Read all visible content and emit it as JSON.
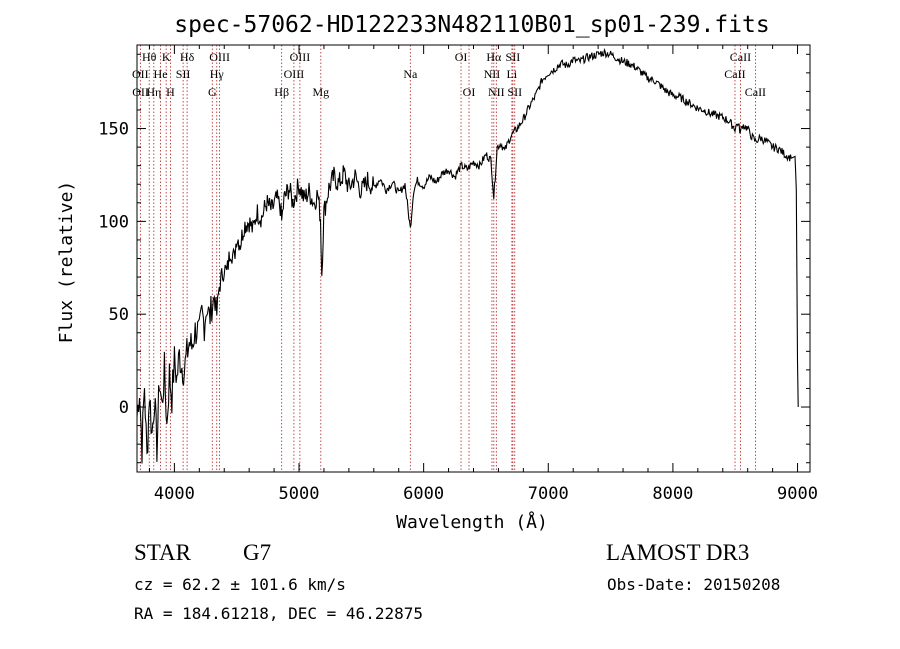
{
  "chart_data": {
    "type": "line",
    "title": "spec-57062-HD122233N482110B01_sp01-239.fits",
    "xlabel": "Wavelength (Å)",
    "ylabel": "Flux (relative)",
    "xlim": [
      3700,
      9100
    ],
    "ylim": [
      -35,
      195
    ],
    "x_ticks": [
      4000,
      5000,
      6000,
      7000,
      8000,
      9000
    ],
    "y_ticks": [
      0,
      50,
      100,
      150
    ],
    "series": [
      {
        "name": "spectrum",
        "points": [
          [
            3700,
            -5
          ],
          [
            3720,
            10
          ],
          [
            3740,
            -22
          ],
          [
            3760,
            12
          ],
          [
            3780,
            -28
          ],
          [
            3800,
            8
          ],
          [
            3820,
            -15
          ],
          [
            3840,
            5
          ],
          [
            3860,
            -22
          ],
          [
            3880,
            15
          ],
          [
            3900,
            0
          ],
          [
            3920,
            20
          ],
          [
            3940,
            -10
          ],
          [
            3960,
            18
          ],
          [
            3980,
            5
          ],
          [
            4000,
            25
          ],
          [
            4020,
            15
          ],
          [
            4040,
            28
          ],
          [
            4060,
            22
          ],
          [
            4080,
            20
          ],
          [
            4100,
            28
          ],
          [
            4120,
            35
          ],
          [
            4140,
            32
          ],
          [
            4160,
            40
          ],
          [
            4180,
            42
          ],
          [
            4200,
            38
          ],
          [
            4220,
            50
          ],
          [
            4240,
            45
          ],
          [
            4260,
            55
          ],
          [
            4280,
            48
          ],
          [
            4300,
            52
          ],
          [
            4320,
            60
          ],
          [
            4340,
            50
          ],
          [
            4360,
            65
          ],
          [
            4380,
            70
          ],
          [
            4400,
            75
          ],
          [
            4420,
            72
          ],
          [
            4450,
            85
          ],
          [
            4480,
            80
          ],
          [
            4500,
            92
          ],
          [
            4530,
            88
          ],
          [
            4560,
            98
          ],
          [
            4600,
            100
          ],
          [
            4630,
            95
          ],
          [
            4660,
            105
          ],
          [
            4700,
            102
          ],
          [
            4740,
            110
          ],
          [
            4780,
            106
          ],
          [
            4820,
            112
          ],
          [
            4850,
            108
          ],
          [
            4861,
            100
          ],
          [
            4880,
            112
          ],
          [
            4920,
            118
          ],
          [
            4950,
            110
          ],
          [
            5000,
            120
          ],
          [
            5040,
            112
          ],
          [
            5080,
            116
          ],
          [
            5120,
            110
          ],
          [
            5150,
            115
          ],
          [
            5172,
            102
          ],
          [
            5183,
            72
          ],
          [
            5200,
            105
          ],
          [
            5240,
            118
          ],
          [
            5280,
            124
          ],
          [
            5320,
            120
          ],
          [
            5360,
            126
          ],
          [
            5400,
            118
          ],
          [
            5450,
            124
          ],
          [
            5500,
            116
          ],
          [
            5550,
            122
          ],
          [
            5600,
            118
          ],
          [
            5650,
            123
          ],
          [
            5700,
            117
          ],
          [
            5750,
            121
          ],
          [
            5800,
            115
          ],
          [
            5850,
            120
          ],
          [
            5893,
            96
          ],
          [
            5920,
            117
          ],
          [
            5950,
            122
          ],
          [
            6000,
            119
          ],
          [
            6050,
            124
          ],
          [
            6100,
            121
          ],
          [
            6150,
            126
          ],
          [
            6200,
            128
          ],
          [
            6250,
            124
          ],
          [
            6300,
            130
          ],
          [
            6350,
            128
          ],
          [
            6400,
            132
          ],
          [
            6450,
            130
          ],
          [
            6500,
            136
          ],
          [
            6540,
            133
          ],
          [
            6563,
            113
          ],
          [
            6590,
            140
          ],
          [
            6620,
            142
          ],
          [
            6650,
            138
          ],
          [
            6700,
            146
          ],
          [
            6750,
            150
          ],
          [
            6800,
            155
          ],
          [
            6850,
            162
          ],
          [
            6900,
            168
          ],
          [
            6950,
            176
          ],
          [
            7000,
            180
          ],
          [
            7050,
            182
          ],
          [
            7100,
            185
          ],
          [
            7150,
            184
          ],
          [
            7200,
            187
          ],
          [
            7250,
            186
          ],
          [
            7300,
            188
          ],
          [
            7350,
            189
          ],
          [
            7400,
            190
          ],
          [
            7450,
            191
          ],
          [
            7500,
            190
          ],
          [
            7550,
            188
          ],
          [
            7600,
            186
          ],
          [
            7650,
            185
          ],
          [
            7700,
            183
          ],
          [
            7750,
            180
          ],
          [
            7800,
            177
          ],
          [
            7850,
            176
          ],
          [
            7900,
            173
          ],
          [
            7950,
            170
          ],
          [
            8000,
            168
          ],
          [
            8050,
            167
          ],
          [
            8100,
            165
          ],
          [
            8150,
            163
          ],
          [
            8200,
            161
          ],
          [
            8250,
            160
          ],
          [
            8300,
            158
          ],
          [
            8350,
            157
          ],
          [
            8400,
            156
          ],
          [
            8450,
            154
          ],
          [
            8498,
            150
          ],
          [
            8520,
            153
          ],
          [
            8542,
            148
          ],
          [
            8560,
            152
          ],
          [
            8600,
            150
          ],
          [
            8620,
            147
          ],
          [
            8662,
            143
          ],
          [
            8700,
            145
          ],
          [
            8750,
            143
          ],
          [
            8800,
            140
          ],
          [
            8850,
            139
          ],
          [
            8900,
            136
          ],
          [
            8950,
            134
          ],
          [
            8980,
            135
          ],
          [
            8990,
            117
          ],
          [
            9000,
            25
          ],
          [
            9005,
            0
          ]
        ]
      }
    ],
    "annotations": [
      {
        "label": "Hθ",
        "x": 3798,
        "row": 0
      },
      {
        "label": "K",
        "x": 3934,
        "row": 0
      },
      {
        "label": "Hδ",
        "x": 4102,
        "row": 0
      },
      {
        "label": "OIII",
        "x": 4363,
        "row": 0
      },
      {
        "label": "OIII",
        "x": 5007,
        "row": 0
      },
      {
        "label": "OI",
        "x": 6300,
        "row": 0
      },
      {
        "label": "Hα",
        "x": 6563,
        "row": 0
      },
      {
        "label": "SII",
        "x": 6716,
        "row": 0
      },
      {
        "label": "CaII",
        "x": 8542,
        "row": 0
      },
      {
        "label": "OII",
        "x": 3727,
        "row": 1
      },
      {
        "label": "He",
        "x": 3889,
        "row": 1
      },
      {
        "label": "SII",
        "x": 4070,
        "row": 1
      },
      {
        "label": "Hγ",
        "x": 4340,
        "row": 1
      },
      {
        "label": "OIII",
        "x": 4959,
        "row": 1
      },
      {
        "label": "Na",
        "x": 5893,
        "row": 1
      },
      {
        "label": "NII",
        "x": 6548,
        "row": 1
      },
      {
        "label": "Li",
        "x": 6708,
        "row": 1
      },
      {
        "label": "CaII",
        "x": 8498,
        "row": 1
      },
      {
        "label": "OII",
        "x": 3729,
        "row": 2
      },
      {
        "label": "Hη",
        "x": 3835,
        "row": 2
      },
      {
        "label": "H",
        "x": 3968,
        "row": 2
      },
      {
        "label": "G",
        "x": 4304,
        "row": 2
      },
      {
        "label": "Hβ",
        "x": 4861,
        "row": 2
      },
      {
        "label": "Mg",
        "x": 5175,
        "row": 2
      },
      {
        "label": "OI",
        "x": 6364,
        "row": 2
      },
      {
        "label": "NII",
        "x": 6583,
        "row": 2
      },
      {
        "label": "SII",
        "x": 6731,
        "row": 2
      },
      {
        "label": "CaII",
        "x": 8662,
        "row": 2
      }
    ],
    "line_markers": [
      3727,
      3798,
      3835,
      3889,
      3934,
      3968,
      4070,
      4102,
      4304,
      4340,
      4363,
      4861,
      4959,
      5007,
      5175,
      5893,
      6300,
      6364,
      6548,
      6563,
      6583,
      6708,
      6716,
      6731,
      8498,
      8542,
      8662
    ],
    "colors": {
      "axes": "#000000",
      "spectrum": "#000000",
      "markers": "#b02020"
    }
  },
  "info": {
    "object_type": "STAR",
    "subclass": "G7",
    "survey": "LAMOST DR3",
    "redshift": "cz = 62.2 ± 101.6 km/s",
    "obs_date": "Obs-Date: 20150208",
    "coords": "RA = 184.61218, DEC =  46.22875"
  }
}
